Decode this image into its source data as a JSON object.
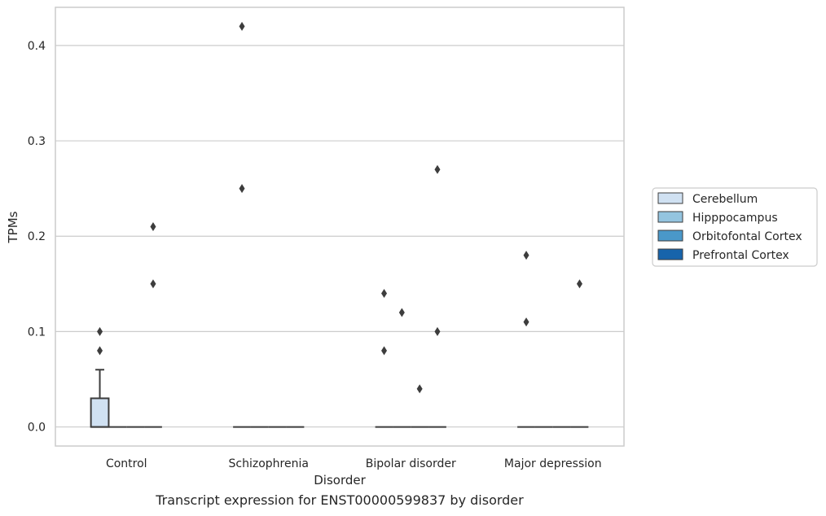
{
  "caption": "Transcript expression for ENST00000599837 by disorder",
  "colors": {
    "Cerebellum": "#d0e1f2",
    "Hipppocampus": "#94c4df",
    "Orbitofontal Cortex": "#4a98c9",
    "Prefrontal Cortex": "#1764ab",
    "grid": "#cccccc",
    "edge": "#3d3d3d"
  },
  "chart_data": {
    "type": "box",
    "xlabel": "Disorder",
    "ylabel": "TPMs",
    "ylim": [
      -0.02,
      0.44
    ],
    "yticks": [
      0.0,
      0.1,
      0.2,
      0.3,
      0.4
    ],
    "ytick_labels": [
      "0.0",
      "0.1",
      "0.2",
      "0.3",
      "0.4"
    ],
    "grid": "horizontal",
    "legend_position": "right",
    "categories": [
      "Control",
      "Schizophrenia",
      "Bipolar disorder",
      "Major depression"
    ],
    "series": [
      {
        "name": "Cerebellum",
        "boxes": [
          {
            "q1": 0.0,
            "median": 0.0,
            "q3": 0.03,
            "whisker_low": 0.0,
            "whisker_high": 0.06,
            "outliers": [
              0.08,
              0.1
            ]
          },
          {
            "q1": 0.0,
            "median": 0.0,
            "q3": 0.0,
            "whisker_low": 0.0,
            "whisker_high": 0.0,
            "outliers": [
              0.25,
              0.42
            ]
          },
          {
            "q1": 0.0,
            "median": 0.0,
            "q3": 0.0,
            "whisker_low": 0.0,
            "whisker_high": 0.0,
            "outliers": [
              0.08,
              0.14
            ]
          },
          {
            "q1": 0.0,
            "median": 0.0,
            "q3": 0.0,
            "whisker_low": 0.0,
            "whisker_high": 0.0,
            "outliers": [
              0.11,
              0.18
            ]
          }
        ]
      },
      {
        "name": "Hipppocampus",
        "boxes": [
          {
            "q1": 0.0,
            "median": 0.0,
            "q3": 0.0,
            "whisker_low": 0.0,
            "whisker_high": 0.0,
            "outliers": []
          },
          {
            "q1": 0.0,
            "median": 0.0,
            "q3": 0.0,
            "whisker_low": 0.0,
            "whisker_high": 0.0,
            "outliers": []
          },
          {
            "q1": 0.0,
            "median": 0.0,
            "q3": 0.0,
            "whisker_low": 0.0,
            "whisker_high": 0.0,
            "outliers": [
              0.12
            ]
          },
          {
            "q1": 0.0,
            "median": 0.0,
            "q3": 0.0,
            "whisker_low": 0.0,
            "whisker_high": 0.0,
            "outliers": []
          }
        ]
      },
      {
        "name": "Orbitofontal Cortex",
        "boxes": [
          {
            "q1": 0.0,
            "median": 0.0,
            "q3": 0.0,
            "whisker_low": 0.0,
            "whisker_high": 0.0,
            "outliers": []
          },
          {
            "q1": 0.0,
            "median": 0.0,
            "q3": 0.0,
            "whisker_low": 0.0,
            "whisker_high": 0.0,
            "outliers": []
          },
          {
            "q1": 0.0,
            "median": 0.0,
            "q3": 0.0,
            "whisker_low": 0.0,
            "whisker_high": 0.0,
            "outliers": [
              0.04
            ]
          },
          {
            "q1": 0.0,
            "median": 0.0,
            "q3": 0.0,
            "whisker_low": 0.0,
            "whisker_high": 0.0,
            "outliers": []
          }
        ]
      },
      {
        "name": "Prefrontal Cortex",
        "boxes": [
          {
            "q1": 0.0,
            "median": 0.0,
            "q3": 0.0,
            "whisker_low": 0.0,
            "whisker_high": 0.0,
            "outliers": [
              0.15,
              0.21
            ]
          },
          {
            "q1": 0.0,
            "median": 0.0,
            "q3": 0.0,
            "whisker_low": 0.0,
            "whisker_high": 0.0,
            "outliers": []
          },
          {
            "q1": 0.0,
            "median": 0.0,
            "q3": 0.0,
            "whisker_low": 0.0,
            "whisker_high": 0.0,
            "outliers": [
              0.1,
              0.27
            ]
          },
          {
            "q1": 0.0,
            "median": 0.0,
            "q3": 0.0,
            "whisker_low": 0.0,
            "whisker_high": 0.0,
            "outliers": [
              0.15
            ]
          }
        ]
      }
    ]
  }
}
